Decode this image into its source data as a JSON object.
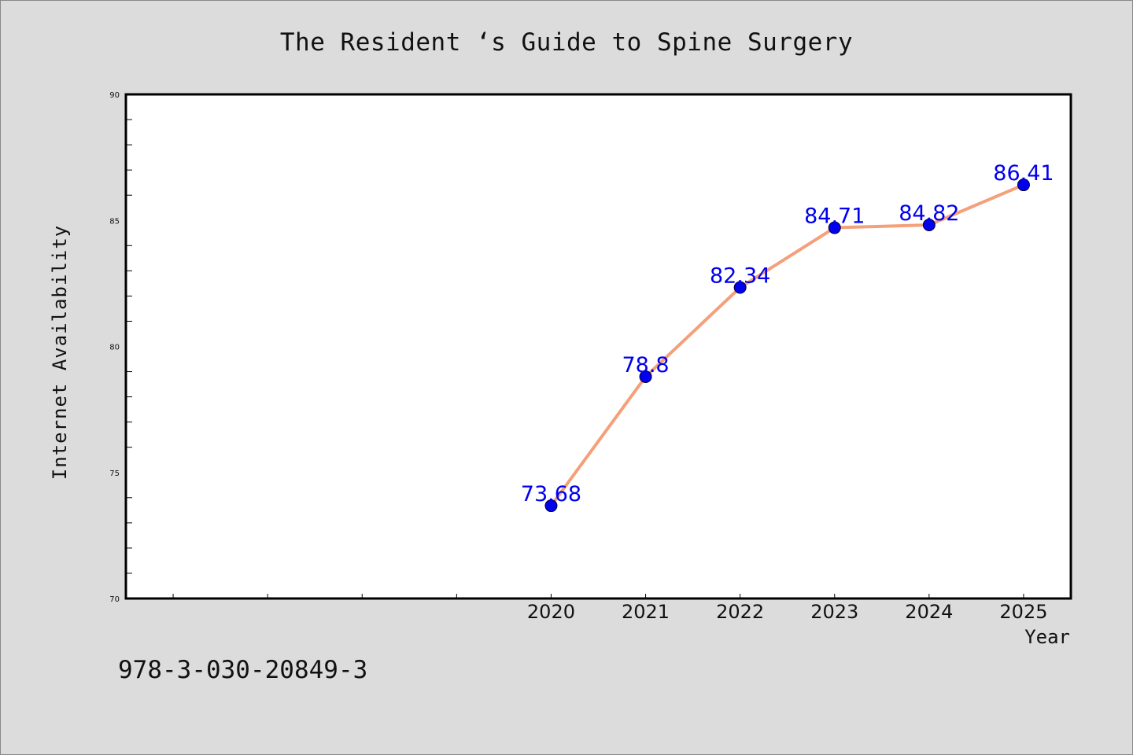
{
  "title": "The Resident ‘s Guide to Spine Surgery",
  "isbn": "978-3-030-20849-3",
  "colors": {
    "background": "#dcdcdc",
    "plot_background": "#ffffff",
    "line": "#f4a07a",
    "marker": "#0000ee",
    "data_label": "#0000ee"
  },
  "chart_data": {
    "type": "line",
    "title": "The Resident ‘s Guide to Spine Surgery",
    "xlabel": "Year",
    "ylabel": "Internet Availability",
    "x": [
      "2020",
      "2021",
      "2022",
      "2023",
      "2024",
      "2025"
    ],
    "x_numeric": [
      2020,
      2021,
      2022,
      2023,
      2024,
      2025
    ],
    "xlim": [
      2015.5,
      2025.5
    ],
    "ylim": [
      70,
      90
    ],
    "y_ticks": [
      70,
      75,
      80,
      85,
      90
    ],
    "series": [
      {
        "values": [
          73.68,
          78.8,
          82.34,
          84.71,
          84.82,
          86.41
        ],
        "labels": [
          "73.68",
          "78.8",
          "82.34",
          "84.71",
          "84.82",
          "86.41"
        ]
      }
    ],
    "grid": false,
    "legend": "none"
  }
}
